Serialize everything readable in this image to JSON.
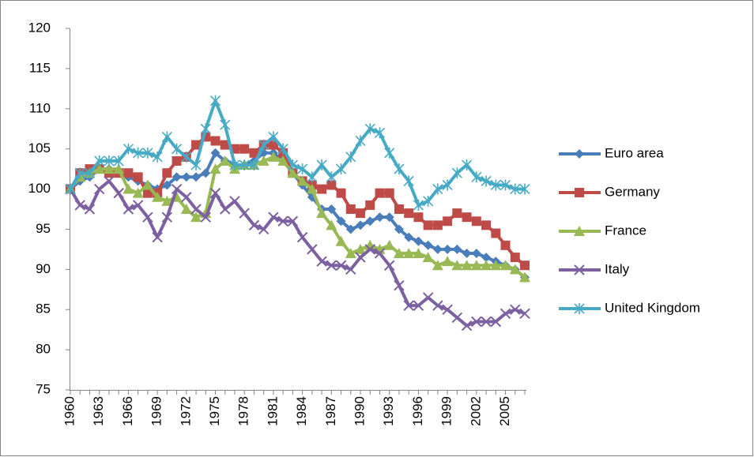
{
  "chart_data": {
    "type": "line",
    "categories": [
      "1960",
      null,
      null,
      "1963",
      null,
      null,
      "1966",
      null,
      null,
      "1969",
      null,
      null,
      "1972",
      null,
      null,
      "1975",
      null,
      null,
      "1978",
      null,
      null,
      "1981",
      null,
      null,
      "1984",
      null,
      null,
      "1987",
      null,
      null,
      "1990",
      null,
      null,
      "1993",
      null,
      null,
      "1996",
      null,
      null,
      "1999",
      null,
      null,
      "2002",
      null,
      null,
      "2005",
      null,
      null
    ],
    "ylim": [
      75,
      120
    ],
    "yticks": [
      75,
      80,
      85,
      90,
      95,
      100,
      105,
      110,
      115,
      120
    ],
    "grid": false,
    "legend": "right",
    "series": [
      {
        "name": "Euro area",
        "color": "#4a7ebb",
        "marker": "diamond",
        "values": [
          100,
          101,
          101.5,
          102.5,
          102.5,
          102,
          101.5,
          101,
          100.5,
          100,
          100.5,
          101.5,
          101.5,
          101.5,
          102,
          104.5,
          103.5,
          103,
          103,
          103.5,
          104.5,
          104.5,
          103.5,
          102,
          100.5,
          99,
          97.5,
          97.5,
          96,
          95,
          95.5,
          96,
          96.5,
          96.5,
          95,
          94,
          93.5,
          93,
          92.5,
          92.5,
          92.5,
          92,
          92,
          91.5,
          91,
          90.5,
          90,
          89
        ]
      },
      {
        "name": "Germany",
        "color": "#be4b48",
        "marker": "square",
        "values": [
          100,
          102,
          102.5,
          102.5,
          102,
          102,
          102,
          101.5,
          99.5,
          99.5,
          102,
          103.5,
          104,
          105.5,
          106.5,
          106,
          105.5,
          105,
          105,
          104.5,
          105.5,
          105.5,
          104.5,
          102,
          101,
          100.5,
          100,
          100.5,
          99.5,
          97.5,
          97,
          98,
          99.5,
          99.5,
          97.5,
          97,
          96.5,
          95.5,
          95.5,
          96,
          97,
          96.5,
          96,
          95.5,
          94.5,
          93,
          91.5,
          90.5
        ]
      },
      {
        "name": "France",
        "color": "#98b954",
        "marker": "triangle",
        "values": [
          100,
          101.5,
          102,
          102.5,
          102.5,
          102.5,
          100,
          99.5,
          100.5,
          99,
          98.5,
          99,
          97.5,
          96.5,
          97,
          102.5,
          103.5,
          102.5,
          103,
          103,
          103.5,
          104,
          103.5,
          102,
          101,
          100,
          97,
          95.5,
          93.5,
          92,
          92.5,
          93,
          92.5,
          93,
          92,
          92,
          92,
          91.5,
          90.5,
          91,
          90.5,
          90.5,
          90.5,
          90.5,
          90.5,
          90.5,
          90,
          89
        ]
      },
      {
        "name": "Italy",
        "color": "#7d60a0",
        "marker": "x",
        "values": [
          100,
          98,
          97.5,
          100,
          101,
          99.5,
          97.5,
          98,
          96.5,
          94,
          96.5,
          100,
          99,
          97.5,
          96.5,
          99.5,
          97.5,
          98.5,
          97,
          95.5,
          95,
          96.5,
          96,
          96,
          94,
          92.5,
          91,
          90.5,
          90.5,
          90,
          91.5,
          92.5,
          92,
          90.5,
          88,
          85.5,
          85.5,
          86.5,
          85.5,
          85,
          84,
          83,
          83.5,
          83.5,
          83.5,
          84.5,
          85,
          84.5
        ]
      },
      {
        "name": "United Kingdom",
        "color": "#46aac5",
        "marker": "star",
        "values": [
          100,
          102,
          102,
          103.5,
          103.5,
          103.5,
          105,
          104.5,
          104.5,
          104,
          106.5,
          105,
          104,
          103,
          107.5,
          111,
          108,
          103,
          103,
          103,
          105.5,
          106.5,
          105,
          103,
          102.5,
          101.5,
          103,
          101.5,
          102.5,
          104,
          106,
          107.5,
          107,
          104.5,
          102.5,
          101,
          98,
          98.5,
          100,
          100.5,
          102,
          103,
          101.5,
          101,
          100.5,
          100.5,
          100,
          100
        ]
      }
    ]
  }
}
